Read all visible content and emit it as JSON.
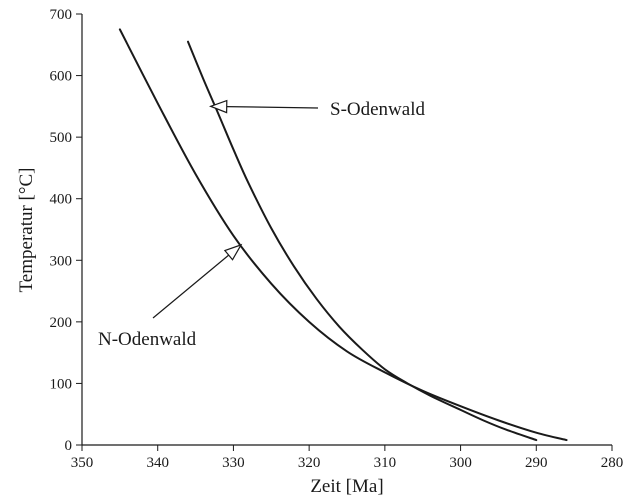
{
  "chart_data": {
    "type": "line",
    "title": "",
    "xlabel": "Zeit [Ma]",
    "ylabel": "Temperatur [°C]",
    "xlim": [
      350,
      280
    ],
    "ylim": [
      0,
      700
    ],
    "x_reversed": true,
    "grid": false,
    "xticks": [
      350,
      340,
      330,
      320,
      310,
      300,
      290,
      280
    ],
    "yticks": [
      0,
      100,
      200,
      300,
      400,
      500,
      600,
      700
    ],
    "series": [
      {
        "name": "N-Odenwald",
        "x": [
          345,
          340,
          335,
          330,
          325,
          320,
          315,
          310,
          305,
          300,
          295,
          290,
          286
        ],
        "y": [
          675,
          555,
          440,
          340,
          262,
          200,
          152,
          118,
          88,
          63,
          40,
          20,
          8
        ]
      },
      {
        "name": "S-Odenwald",
        "x": [
          336,
          334,
          332,
          330,
          328,
          325,
          322,
          319,
          316,
          313,
          310,
          307,
          304,
          300,
          297,
          294,
          290
        ],
        "y": [
          655,
          595,
          538,
          480,
          425,
          352,
          290,
          237,
          192,
          155,
          123,
          100,
          80,
          57,
          40,
          25,
          8
        ]
      }
    ],
    "annotations": [
      {
        "text": "S-Odenwald",
        "series": "S-Odenwald",
        "arrow_to": [
          333,
          550
        ]
      },
      {
        "text": "N-Odenwald",
        "series": "N-Odenwald",
        "arrow_to": [
          329,
          325
        ]
      }
    ]
  }
}
